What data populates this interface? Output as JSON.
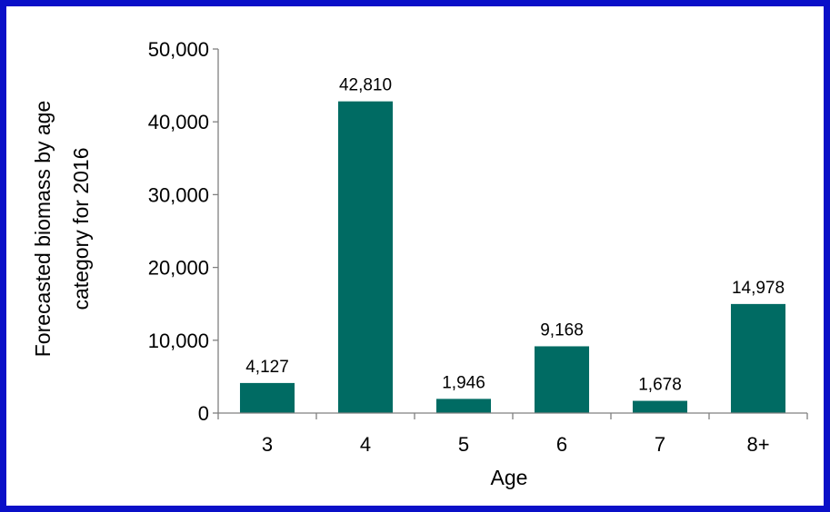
{
  "chart_data": {
    "type": "bar",
    "categories": [
      "3",
      "4",
      "5",
      "6",
      "7",
      "8+"
    ],
    "values": [
      4127,
      42810,
      1946,
      9168,
      1678,
      14978
    ],
    "data_labels": [
      "4,127",
      "42,810",
      "1,946",
      "9,168",
      "1,678",
      "14,978"
    ],
    "xlabel": "Age",
    "ylabel_lines": [
      "Forecasted biomass by age",
      "category for 2016"
    ],
    "ylim": [
      0,
      50000
    ],
    "yticks": [
      0,
      10000,
      20000,
      30000,
      40000,
      50000
    ],
    "ytick_labels": [
      "0",
      "10,000",
      "20,000",
      "30,000",
      "40,000",
      "50,000"
    ],
    "grid": false,
    "legend": "none"
  },
  "colors": {
    "frame": "#0a10c8",
    "panel": "#ffffff",
    "bar": "#006b63",
    "axis": "#808080"
  }
}
